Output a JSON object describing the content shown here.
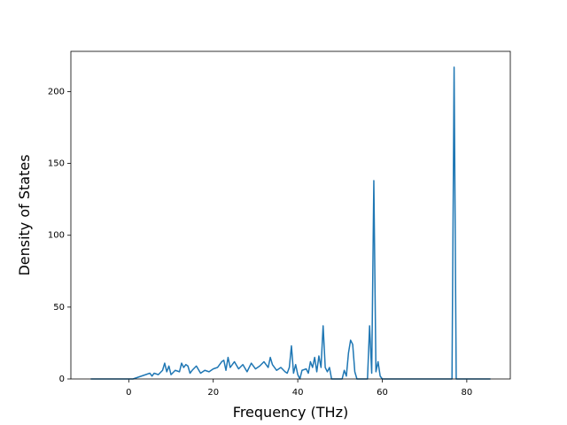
{
  "chart_data": {
    "type": "line",
    "xlabel": "Frequency (THz)",
    "ylabel": "Density of States",
    "x": [
      -9,
      1,
      2,
      3,
      4,
      5,
      5.5,
      6,
      7,
      8,
      8.5,
      9,
      9.5,
      10,
      11,
      12,
      12.5,
      13,
      13.5,
      14,
      14.5,
      15,
      16,
      17,
      18,
      19,
      20,
      21,
      22,
      22.5,
      23,
      23.5,
      24,
      25,
      26,
      27,
      28,
      29,
      30,
      31,
      32,
      33,
      33.5,
      34,
      35,
      36,
      37,
      37.5,
      38,
      38.5,
      39,
      39.5,
      40,
      40.5,
      41,
      42,
      42.5,
      43,
      43.5,
      44,
      44.5,
      45,
      45.5,
      46,
      46.5,
      47,
      47.5,
      48,
      50.5,
      51,
      51.5,
      52,
      52.5,
      53,
      53.5,
      54,
      56.5,
      57,
      57.5,
      58,
      58.5,
      59,
      59.5,
      60,
      76.5,
      77,
      77.5,
      85.6
    ],
    "series": [
      {
        "color": "#1f77b4",
        "values": [
          0,
          0,
          1,
          2,
          3,
          4,
          2,
          4,
          3,
          6,
          11,
          5,
          9,
          3,
          6,
          5,
          11,
          8,
          10,
          9,
          4,
          6,
          9,
          4,
          6,
          5,
          7,
          8,
          12,
          13,
          6,
          15,
          8,
          12,
          7,
          10,
          5,
          11,
          7,
          9,
          12,
          8,
          15,
          10,
          6,
          8,
          5,
          4,
          8,
          23,
          4,
          10,
          3,
          0,
          6,
          7,
          4,
          12,
          8,
          15,
          5,
          16,
          8,
          37,
          8,
          5,
          8,
          0,
          0,
          6,
          2,
          18,
          27,
          24,
          5,
          0,
          0,
          37,
          4,
          138,
          5,
          12,
          2,
          0,
          0,
          217,
          0,
          0
        ]
      }
    ],
    "xlim": [
      -13.7,
      90.3
    ],
    "ylim": [
      0,
      228
    ],
    "xticks": [
      0,
      20,
      40,
      60,
      80
    ],
    "yticks": [
      0,
      50,
      100,
      150,
      200
    ]
  }
}
